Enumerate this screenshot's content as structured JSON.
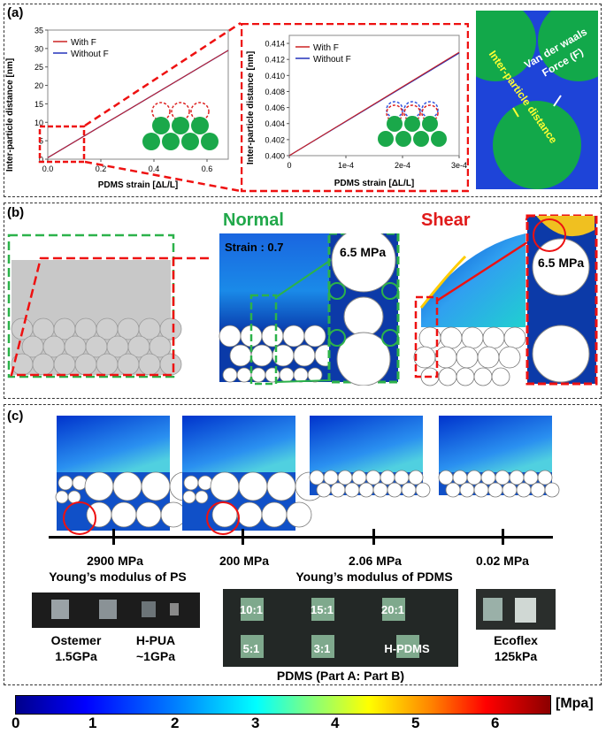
{
  "panel_a": {
    "label": "(a)",
    "chart1": {
      "ylabel": "Inter-particle distance [nm]",
      "xlabel": "PDMS strain [ΔL/L]",
      "yticks": [
        "0",
        "5",
        "10",
        "15",
        "20",
        "25",
        "30",
        "35"
      ],
      "xticks": [
        "0.0",
        "0.2",
        "0.4",
        "0.6"
      ],
      "legend": [
        "With F",
        "Without F"
      ]
    },
    "chart2": {
      "ylabel": "Inter-particle distance [nm]",
      "xlabel": "PDMS strain [ΔL/L]",
      "yticks": [
        "0.400",
        "0.402",
        "0.404",
        "0.406",
        "0.408",
        "0.410",
        "0.412",
        "0.414"
      ],
      "xticks": [
        "0",
        "1e-4",
        "2e-4",
        "3e-4"
      ],
      "legend": [
        "With F",
        "Without F"
      ]
    },
    "illustration": {
      "vdw_label_1": "Van der waals",
      "vdw_label_2": "Force (F)",
      "distance_label": "Inter-particle distance"
    }
  },
  "panel_b": {
    "label": "(b)",
    "normal_title": "Normal",
    "shear_title": "Shear",
    "strain_label": "Strain : 0.7",
    "stress_label_normal": "6.5 MPa",
    "stress_label_shear": "6.5 MPa"
  },
  "panel_c": {
    "label": "(c)",
    "ticks": [
      "2900 MPa",
      "200 MPa",
      "2.06 MPa",
      "0.02 MPa"
    ],
    "ps_label": "Young’s modulus of PS",
    "pdms_label": "Young’s modulus of PDMS",
    "materials": {
      "ostemer": [
        "Ostemer",
        "1.5GPa"
      ],
      "hpua": [
        "H-PUA",
        "~1GPa"
      ],
      "pdms_ratios": [
        "10:1",
        "15:1",
        "20:1",
        "5:1",
        "3:1",
        "H-PDMS"
      ],
      "pdms_caption": "PDMS (Part A: Part B)",
      "ecoflex": [
        "Ecoflex",
        "125kPa"
      ]
    }
  },
  "colorbar": {
    "unit": "[Mpa]",
    "ticks": [
      "0",
      "1",
      "2",
      "3",
      "4",
      "5",
      "6"
    ],
    "colors": [
      "#00008b",
      "#0000ff",
      "#0080ff",
      "#00ffff",
      "#80ff80",
      "#ffff00",
      "#ff8000",
      "#ff0000",
      "#8b0000"
    ]
  },
  "chart_data": [
    {
      "type": "line",
      "xlabel": "PDMS strain [ΔL/L]",
      "ylabel": "Inter-particle distance [nm]",
      "xlim": [
        0,
        0.68
      ],
      "ylim": [
        0,
        35
      ],
      "series": [
        {
          "name": "With F",
          "x": [
            0,
            0.68
          ],
          "y": [
            0.4,
            29.5
          ]
        },
        {
          "name": "Without F",
          "x": [
            0,
            0.68
          ],
          "y": [
            0.4,
            29.5
          ]
        }
      ],
      "legend": "top-left"
    },
    {
      "type": "line",
      "xlabel": "PDMS strain [ΔL/L]",
      "ylabel": "Inter-particle distance [nm]",
      "xlim": [
        0,
        0.0003
      ],
      "ylim": [
        0.4,
        0.415
      ],
      "series": [
        {
          "name": "With F",
          "x": [
            0,
            0.0003
          ],
          "y": [
            0.4,
            0.4129
          ]
        },
        {
          "name": "Without F",
          "x": [
            0,
            0.0003
          ],
          "y": [
            0.4,
            0.4128
          ]
        }
      ],
      "legend": "top-left"
    }
  ]
}
